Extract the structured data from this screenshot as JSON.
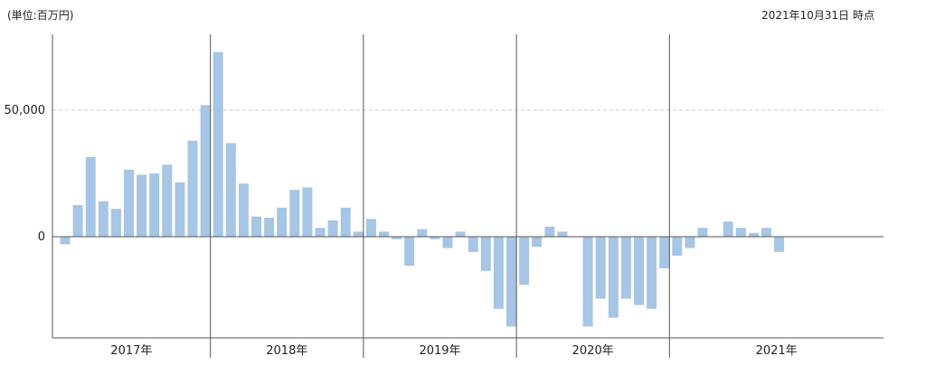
{
  "unit_label": "(単位:百万円)",
  "as_of_label": "2021年10月31日 時点",
  "chart_data": {
    "type": "bar",
    "ylim": [
      -38000,
      80000
    ],
    "yticks": [
      0,
      50000
    ],
    "ytick_labels": [
      "0",
      "50,000"
    ],
    "grid": "horizontal dashed at 50,000",
    "colors": {
      "bar": "#a7c5e4",
      "axis": "#555555",
      "grid": "#cccccc"
    },
    "years": [
      {
        "label": "2017年",
        "values": [
          -3000,
          12500,
          31500,
          14000,
          11000,
          26500,
          24500,
          25000,
          28500,
          21500,
          38000,
          52000
        ]
      },
      {
        "label": "2018年",
        "values": [
          73000,
          37000,
          21000,
          8000,
          7500,
          11500,
          18500,
          19500,
          3500,
          6500,
          11500,
          2000
        ]
      },
      {
        "label": "2019年",
        "values": [
          7000,
          2000,
          -1000,
          -11500,
          3000,
          -1000,
          -4500,
          2000,
          -6000,
          -13500,
          -28500,
          -35500
        ]
      },
      {
        "label": "2020年",
        "values": [
          -19000,
          -4000,
          4000,
          2000,
          0,
          -35500,
          -24500,
          -32000,
          -24500,
          -27000,
          -28500,
          -12500
        ]
      },
      {
        "label": "2021年",
        "values": [
          -7500,
          -4500,
          3500,
          0,
          6000,
          3500,
          1500,
          3500,
          -6000
        ]
      }
    ]
  }
}
